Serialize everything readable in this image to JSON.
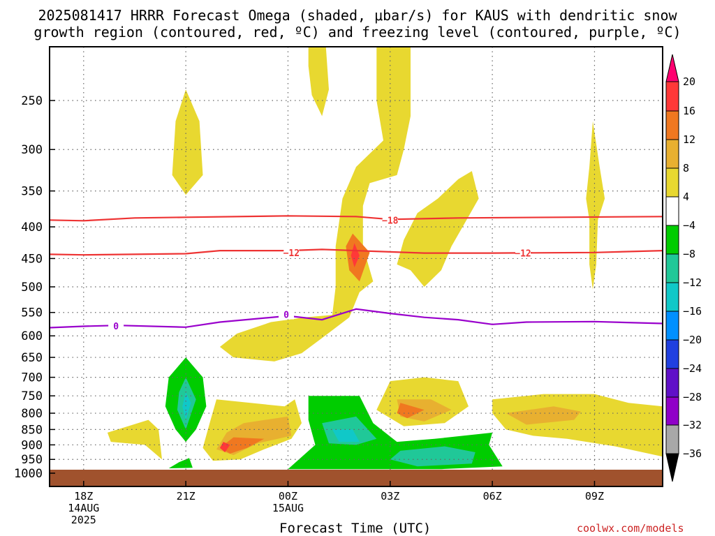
{
  "title_line1": "2025081417 HRRR Forecast Omega (shaded, μbar/s) for KAUS with dendritic snow",
  "title_line2": "growth region (contoured, red, ºC) and freezing level (contoured, purple, ºC)",
  "xlabel": "Forecast Time (UTC)",
  "credit": "coolwx.com/models",
  "colors": {
    "ground": "#a0522d",
    "dgz": "#ee3333",
    "freezing": "#9900cc"
  },
  "chart_data": {
    "type": "heatmap",
    "title": "2025081417 HRRR Forecast Omega (shaded, μbar/s) for KAUS with dendritic snow growth region (contoured, red, ºC) and freezing level (contoured, purple, ºC)",
    "xlabel": "Forecast Time (UTC)",
    "ylabel": "",
    "y_axis_scale": "log-pressure (hPa), inverted",
    "y_ticks": [
      250,
      300,
      350,
      400,
      450,
      500,
      550,
      600,
      650,
      700,
      750,
      800,
      850,
      900,
      950,
      1000
    ],
    "x_ticks": [
      {
        "hour": 18,
        "label": "18Z",
        "sub1": "14AUG",
        "sub2": "2025"
      },
      {
        "hour": 21,
        "label": "21Z",
        "sub1": "",
        "sub2": ""
      },
      {
        "hour": 24,
        "label": "00Z",
        "sub1": "15AUG",
        "sub2": ""
      },
      {
        "hour": 27,
        "label": "03Z",
        "sub1": "",
        "sub2": ""
      },
      {
        "hour": 30,
        "label": "06Z",
        "sub1": "",
        "sub2": ""
      },
      {
        "hour": 33,
        "label": "09Z",
        "sub1": "",
        "sub2": ""
      }
    ],
    "x_range_hours_since_00Z_14AUG": [
      17,
      35
    ],
    "grid": true,
    "colorbar": {
      "labels": [
        "20",
        "16",
        "12",
        "8",
        "4",
        "−4",
        "−8",
        "−12",
        "−16",
        "−20",
        "−24",
        "−28",
        "−32",
        "−36"
      ],
      "colors": [
        "#ff0070",
        "#ff3838",
        "#f07820",
        "#e8b030",
        "#e8d830",
        "#ffffff",
        "#00cc00",
        "#20c898",
        "#10c8c8",
        "#0090ff",
        "#2040e0",
        "#6010c8",
        "#9000c8",
        "#a8a8a8",
        "#000000"
      ]
    },
    "contours": [
      {
        "name": "-18",
        "color": "#ee3333",
        "label_positions": [
          {
            "hour": 27.0,
            "p": 390
          }
        ],
        "points": [
          [
            17,
            390
          ],
          [
            18,
            391
          ],
          [
            19.5,
            387
          ],
          [
            21,
            386
          ],
          [
            24,
            384
          ],
          [
            26,
            385
          ],
          [
            27,
            389
          ],
          [
            29,
            387
          ],
          [
            32,
            386
          ],
          [
            35,
            385
          ]
        ]
      },
      {
        "name": "-12",
        "color": "#ee3333",
        "label_positions": [
          {
            "hour": 24.1,
            "p": 440
          },
          {
            "hour": 30.9,
            "p": 441
          }
        ],
        "points": [
          [
            17,
            443
          ],
          [
            18,
            444
          ],
          [
            21,
            442
          ],
          [
            22,
            437
          ],
          [
            24,
            437
          ],
          [
            25,
            435
          ],
          [
            26,
            437
          ],
          [
            27,
            439
          ],
          [
            28,
            441
          ],
          [
            30,
            441
          ],
          [
            33,
            440
          ],
          [
            35,
            437
          ]
        ]
      },
      {
        "name": "0",
        "color": "#9900cc",
        "label_positions": [
          {
            "hour": 18.95,
            "p": 578
          },
          {
            "hour": 23.95,
            "p": 554
          }
        ],
        "points": [
          [
            17,
            582
          ],
          [
            18,
            579
          ],
          [
            19,
            577
          ],
          [
            21,
            581
          ],
          [
            22,
            570
          ],
          [
            24,
            557
          ],
          [
            25,
            565
          ],
          [
            26,
            543
          ],
          [
            27,
            552
          ],
          [
            28,
            560
          ],
          [
            29,
            565
          ],
          [
            30,
            575
          ],
          [
            31,
            570
          ],
          [
            33,
            569
          ],
          [
            35,
            573
          ]
        ]
      }
    ],
    "omega_regions": [
      {
        "level": "4 to 8",
        "color": "#e8d830",
        "approx": "upper-level plume near 21Z",
        "center_hour": 21,
        "p_range": [
          260,
          345
        ]
      },
      {
        "level": "4 to 8",
        "color": "#e8d830",
        "approx": "plume near 01Z above 250 hPa",
        "center_hour": 25,
        "p_range": [
          200,
          265
        ]
      },
      {
        "level": "4 to 8",
        "color": "#e8d830",
        "approx": "tall plume 01Z-03Z",
        "center_hour": 27,
        "p_range": [
          200,
          670
        ]
      },
      {
        "level": "8 to 16",
        "color": "#f07820",
        "approx": "core near 02Z",
        "center_hour": 26,
        "p_range": [
          420,
          470
        ]
      },
      {
        "level": "4 to 8",
        "color": "#e8d830",
        "approx": "plume 03Z-04Z",
        "center_hour": 28.5,
        "p_range": [
          330,
          500
        ]
      },
      {
        "level": "4 to 8",
        "color": "#e8d830",
        "approx": "thin plume near 09Z",
        "center_hour": 33,
        "p_range": [
          270,
          510
        ]
      },
      {
        "level": "-4 to -16",
        "color": "#00cc00",
        "approx": "descent near 21Z low levels",
        "center_hour": 21,
        "p_range": [
          660,
          890
        ]
      },
      {
        "level": "4 to 16",
        "color": "#e8d830",
        "approx": "ascent 22Z-23Z low levels",
        "center_hour": 22.7,
        "p_range": [
          760,
          950
        ]
      },
      {
        "level": "-4 to -12",
        "color": "#00cc00",
        "approx": "descent 01Z-06Z near surface",
        "center_hour": 27,
        "p_range": [
          760,
          1000
        ]
      },
      {
        "level": "4 to 12",
        "color": "#e8d830",
        "approx": "ascent 03Z-05Z",
        "center_hour": 27.5,
        "p_range": [
          700,
          840
        ]
      },
      {
        "level": "4 to 12",
        "color": "#e8d830",
        "approx": "ascent 06Z-11Z",
        "center_hour": 32,
        "p_range": [
          750,
          900
        ]
      }
    ]
  }
}
